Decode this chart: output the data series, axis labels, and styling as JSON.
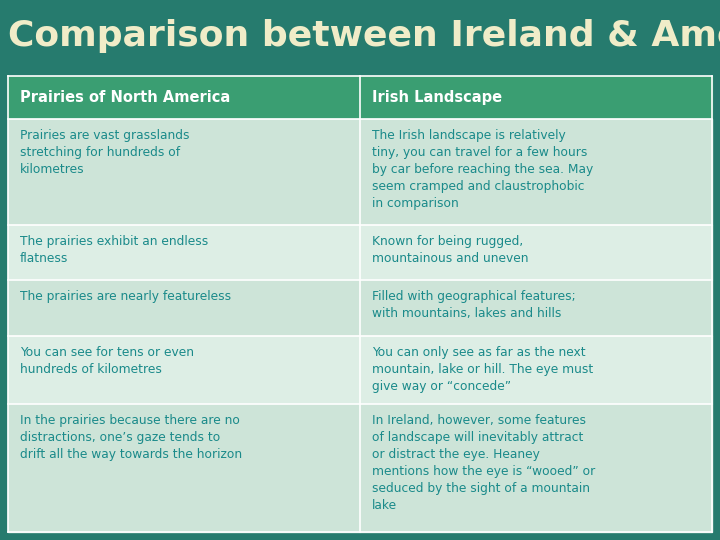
{
  "title": "Comparison between Ireland & America",
  "title_bg": "#267b6e",
  "title_color": "#f0ecc8",
  "title_fontsize": 26,
  "header_bg": "#3a9e72",
  "header_text_color": "#ffffff",
  "header_fontsize": 10.5,
  "cell_bg_even": "#cde4d8",
  "cell_bg_odd": "#ddeee5",
  "cell_text_color": "#1a8a8a",
  "cell_fontsize": 8.8,
  "border_color": "#ffffff",
  "headers": [
    "Prairies of North America",
    "Irish Landscape"
  ],
  "rows": [
    [
      "Prairies are vast grasslands\nstretching for hundreds of\nkilometres",
      "The Irish landscape is relatively\ntiny, you can travel for a few hours\nby car before reaching the sea. May\nseem cramped and claustrophobic\nin comparison"
    ],
    [
      "The prairies exhibit an endless\nflatness",
      "Known for being rugged,\nmountainous and uneven"
    ],
    [
      "The prairies are nearly featureless",
      "Filled with geographical features;\nwith mountains, lakes and hills"
    ],
    [
      "You can see for tens or even\nhundreds of kilometres",
      "You can only see as far as the next\nmountain, lake or hill. The eye must\ngive way or “concede”"
    ],
    [
      "In the prairies because there are no\ndistractions, one’s gaze tends to\ndrift all the way towards the horizon",
      "In Ireland, however, some features\nof landscape will inevitably attract\nor distract the eye. Heaney\nmentions how the eye is “wooed” or\nseduced by the sight of a mountain\nlake"
    ]
  ],
  "fig_bg": "#267b6e",
  "row_heights_rel": [
    1.05,
    2.55,
    1.35,
    1.35,
    1.65,
    3.1
  ]
}
